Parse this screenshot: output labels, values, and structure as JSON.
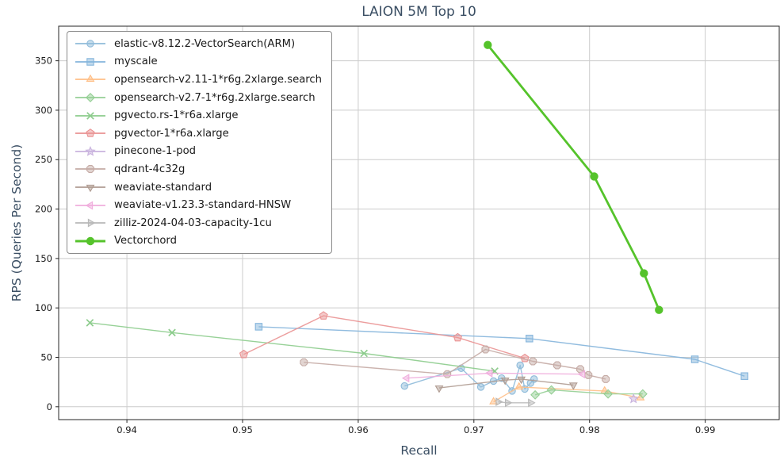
{
  "colors": {
    "background": "#ffffff",
    "grid": "#cccccc",
    "spine": "#262626",
    "title": "#3a4e63",
    "axis_label": "#3a4e63",
    "tick_label": "#1c1c1c",
    "legend_border": "#8a8a8a"
  },
  "chart_data": {
    "type": "line",
    "title": "LAION 5M Top 10",
    "xlabel": "Recall",
    "ylabel": "RPS (Queries Per Second)",
    "xlim": [
      0.9341,
      0.9964
    ],
    "ylim": [
      -13,
      385
    ],
    "xticks": [
      0.94,
      0.95,
      0.96,
      0.97,
      0.98,
      0.99
    ],
    "yticks": [
      0,
      50,
      100,
      150,
      200,
      250,
      300,
      350
    ],
    "grid": true,
    "legend_position": "upper left",
    "series": [
      {
        "id": "elastic",
        "name": "elastic-v8.12.2-VectorSearch(ARM)",
        "color": "#8fbbda",
        "marker": "circle",
        "emphasis": false,
        "points": [
          [
            0.964,
            21
          ],
          [
            0.9689,
            39
          ],
          [
            0.9706,
            20
          ],
          [
            0.9717,
            26
          ],
          [
            0.9724,
            29
          ],
          [
            0.9733,
            16
          ],
          [
            0.974,
            42
          ],
          [
            0.9744,
            18
          ],
          [
            0.9749,
            24
          ],
          [
            0.9752,
            28
          ]
        ]
      },
      {
        "id": "myscale",
        "name": "myscale",
        "color": "#85b5dc",
        "marker": "square",
        "emphasis": false,
        "points": [
          [
            0.9514,
            81
          ],
          [
            0.9748,
            69
          ],
          [
            0.9891,
            48
          ],
          [
            0.9934,
            31
          ]
        ]
      },
      {
        "id": "opensearch-v2-11",
        "name": "opensearch-v2.11-1*r6g.2xlarge.search",
        "color": "#ffbf87",
        "marker": "triangle-up",
        "emphasis": false,
        "points": [
          [
            0.9717,
            5
          ],
          [
            0.9739,
            20
          ],
          [
            0.9813,
            16
          ],
          [
            0.9844,
            9
          ]
        ]
      },
      {
        "id": "opensearch-v2-7",
        "name": "opensearch-v2.7-1*r6g.2xlarge.search",
        "color": "#95cf95",
        "marker": "diamond",
        "emphasis": false,
        "points": [
          [
            0.9753,
            12
          ],
          [
            0.9767,
            17
          ],
          [
            0.9816,
            13
          ],
          [
            0.9846,
            13
          ]
        ]
      },
      {
        "id": "pgvecto-rs",
        "name": "pgvecto.rs-1*r6a.xlarge",
        "color": "#8ccc8c",
        "marker": "x",
        "emphasis": false,
        "points": [
          [
            0.9368,
            85
          ],
          [
            0.9439,
            75
          ],
          [
            0.9605,
            54
          ],
          [
            0.9718,
            36
          ]
        ]
      },
      {
        "id": "pgvector",
        "name": "pgvector-1*r6a.xlarge",
        "color": "#ea9393",
        "marker": "pentagon",
        "emphasis": false,
        "points": [
          [
            0.9501,
            53
          ],
          [
            0.957,
            92
          ],
          [
            0.9686,
            70
          ],
          [
            0.9744,
            49
          ]
        ]
      },
      {
        "id": "pinecone",
        "name": "pinecone-1-pod",
        "color": "#c9b3de",
        "marker": "star",
        "emphasis": false,
        "points": [
          [
            0.9838,
            8
          ]
        ]
      },
      {
        "id": "qdrant",
        "name": "qdrant-4c32g",
        "color": "#c5aba5",
        "marker": "octagon",
        "emphasis": false,
        "points": [
          [
            0.9553,
            45
          ],
          [
            0.9677,
            33
          ],
          [
            0.971,
            58
          ],
          [
            0.9751,
            46
          ],
          [
            0.9772,
            42
          ],
          [
            0.9792,
            38
          ],
          [
            0.9799,
            32
          ],
          [
            0.9814,
            28
          ]
        ]
      },
      {
        "id": "weaviate-standard",
        "name": "weaviate-standard",
        "color": "#b09c92",
        "marker": "triangle-down",
        "emphasis": false,
        "points": [
          [
            0.967,
            19
          ],
          [
            0.9727,
            27
          ],
          [
            0.9741,
            28
          ],
          [
            0.9786,
            22
          ]
        ]
      },
      {
        "id": "weaviate-hnsw",
        "name": "weaviate-v1.23.3-standard-HNSW",
        "color": "#f0aedd",
        "marker": "triangle-left",
        "emphasis": false,
        "points": [
          [
            0.9642,
            29
          ],
          [
            0.9714,
            34
          ],
          [
            0.9794,
            33
          ]
        ]
      },
      {
        "id": "zilliz",
        "name": "zilliz-2024-04-03-capacity-1cu",
        "color": "#b8b8b8",
        "marker": "triangle-right",
        "emphasis": false,
        "points": [
          [
            0.9721,
            5
          ],
          [
            0.9729,
            4
          ],
          [
            0.9749,
            4
          ]
        ]
      },
      {
        "id": "vectorchord",
        "name": "Vectorchord",
        "color": "#55c32b",
        "marker": "dot",
        "emphasis": true,
        "points": [
          [
            0.9712,
            366
          ],
          [
            0.9804,
            233
          ],
          [
            0.9847,
            135
          ],
          [
            0.986,
            98
          ]
        ]
      }
    ]
  }
}
